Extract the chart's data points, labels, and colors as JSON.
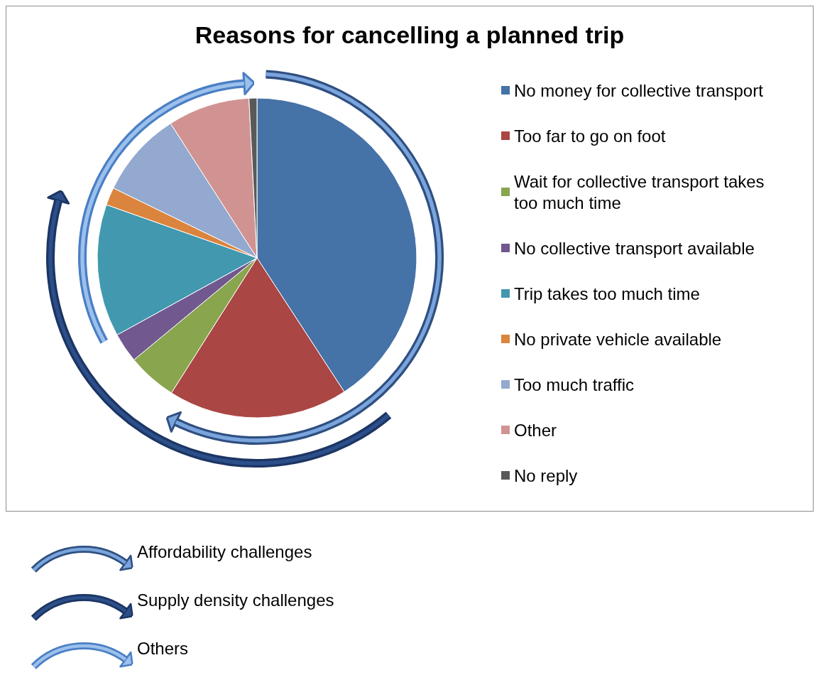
{
  "chart_data": {
    "type": "pie",
    "title": "Reasons for cancelling a planned trip",
    "categories": [
      "No money for collective transport",
      "Too far to go on foot",
      "Wait for collective transport takes too much time",
      "No collective transport available",
      "Trip takes too much time",
      "No private vehicle available",
      "Too much traffic",
      "Other",
      "No reply"
    ],
    "values": [
      40.8,
      18.2,
      5,
      3,
      13.4,
      1.8,
      8.7,
      8.3,
      0.8
    ],
    "colors": [
      "#4572a7",
      "#aa4643",
      "#89a54e",
      "#71588f",
      "#4198af",
      "#db843d",
      "#93a9cf",
      "#d19392",
      "#595959"
    ],
    "legend": "right",
    "annotations": [
      "Affordability challenges",
      "Supply density challenges",
      "Others"
    ]
  }
}
